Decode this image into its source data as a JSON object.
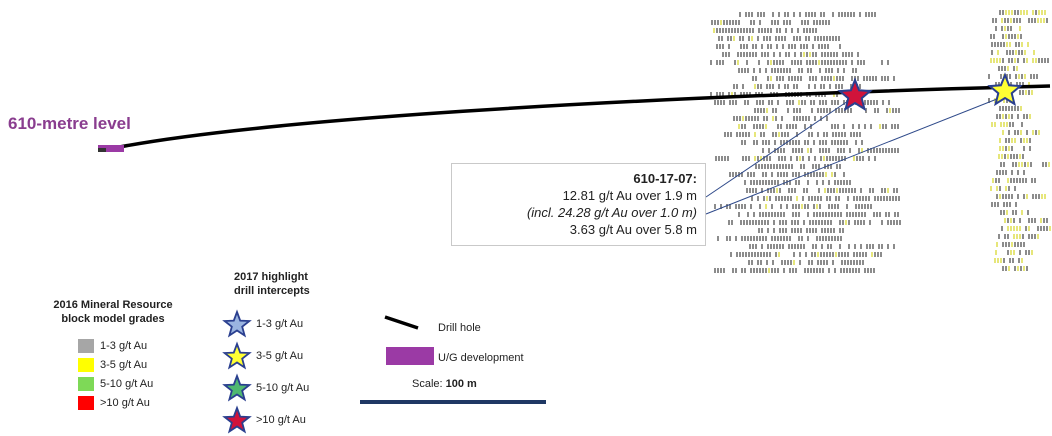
{
  "section": {
    "level_label": "610-metre level",
    "callout": {
      "hole_id": "610-17-07:",
      "line1": "12.81 g/t Au over 1.9 m",
      "line2": "(incl. 24.28 g/t Au over 1.0 m)",
      "line3": "3.63 g/t Au over 5.8 m"
    }
  },
  "legend_block": {
    "title_line1": "2016 Mineral Resource",
    "title_line2": "block model grades",
    "items": [
      {
        "label": "1-3 g/t Au",
        "color": "#a6a6a6"
      },
      {
        "label": "3-5 g/t Au",
        "color": "#ffff00"
      },
      {
        "label": "5-10 g/t Au",
        "color": "#7ed957"
      },
      {
        "label": ">10 g/t Au",
        "color": "#ff0000"
      }
    ]
  },
  "legend_intercepts": {
    "title_line1": "2017 highlight",
    "title_line2": "drill intercepts",
    "items": [
      {
        "label": "1-3 g/t Au",
        "color": "#9ab4e0",
        "icon": "star-icon"
      },
      {
        "label": "3-5 g/t Au",
        "color": "#ffff33",
        "icon": "star-icon"
      },
      {
        "label": "5-10 g/t Au",
        "color": "#4fb870",
        "icon": "star-icon"
      },
      {
        "label": ">10 g/t Au",
        "color": "#d0133b",
        "icon": "star-icon"
      }
    ]
  },
  "legend_features": {
    "drill_hole_label": "Drill hole",
    "development_label": "U/G development",
    "development_color": "#9b3aa5",
    "scale_prefix": "Scale: ",
    "scale_value": "100 m",
    "scale_bar_color": "#1f3864"
  }
}
